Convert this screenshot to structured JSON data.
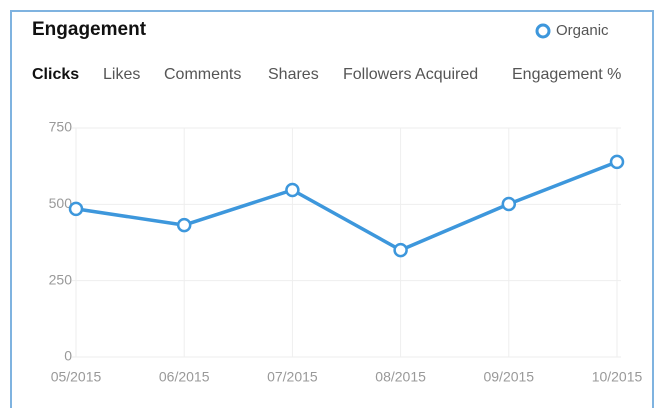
{
  "chart_data": {
    "type": "line",
    "title": "Engagement",
    "categories": [
      "05/2015",
      "06/2015",
      "07/2015",
      "08/2015",
      "09/2015",
      "10/2015"
    ],
    "series": [
      {
        "name": "Organic",
        "color": "#3d97dc",
        "values": [
          485,
          432,
          547,
          350,
          501,
          639
        ]
      }
    ],
    "ylim": [
      0,
      750
    ],
    "yticks": [
      0,
      250,
      500,
      750
    ],
    "grid": true,
    "legend": "top-right"
  },
  "tabs": [
    "Clicks",
    "Likes",
    "Comments",
    "Shares",
    "Followers Acquired",
    "Engagement %"
  ]
}
